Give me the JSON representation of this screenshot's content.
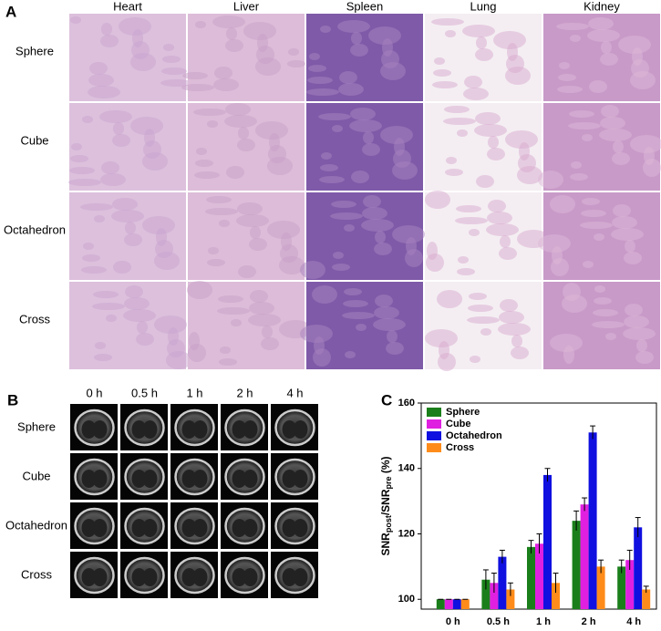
{
  "panel_a": {
    "label": "A",
    "columns": [
      "Heart",
      "Liver",
      "Spleen",
      "Lung",
      "Kidney"
    ],
    "rows": [
      "Sphere",
      "Cube",
      "Octahedron",
      "Cross"
    ]
  },
  "panel_b": {
    "label": "B",
    "columns": [
      "0 h",
      "0.5 h",
      "1 h",
      "2 h",
      "4 h"
    ],
    "rows": [
      "Sphere",
      "Cube",
      "Octahedron",
      "Cross"
    ]
  },
  "chart_data": {
    "type": "bar",
    "panel_label": "C",
    "ylabel": [
      {
        "text": "SNR"
      },
      {
        "text": "post",
        "sub": true
      },
      {
        "text": "/SNR"
      },
      {
        "text": "pre",
        "sub": true
      },
      {
        "text": " (%)"
      }
    ],
    "categories": [
      "0 h",
      "0.5 h",
      "1 h",
      "2 h",
      "4 h"
    ],
    "series": [
      {
        "name": "Sphere",
        "color": "#1a7f1a",
        "values": [
          100,
          106,
          116,
          124,
          110
        ],
        "errors": [
          0,
          3,
          2,
          3,
          2
        ]
      },
      {
        "name": "Cube",
        "color": "#e020e0",
        "values": [
          100,
          105,
          117,
          129,
          112
        ],
        "errors": [
          0,
          3,
          3,
          2,
          3
        ]
      },
      {
        "name": "Octahedron",
        "color": "#1010e0",
        "values": [
          100,
          113,
          138,
          151,
          122
        ],
        "errors": [
          0,
          2,
          2,
          2,
          3
        ]
      },
      {
        "name": "Cross",
        "color": "#ff8c1a",
        "values": [
          100,
          103,
          105,
          110,
          103
        ],
        "errors": [
          0,
          2,
          3,
          2,
          1
        ]
      }
    ],
    "ylim": [
      97,
      160
    ],
    "yticks": [
      100,
      120,
      140,
      160
    ],
    "legend": "top-left"
  }
}
